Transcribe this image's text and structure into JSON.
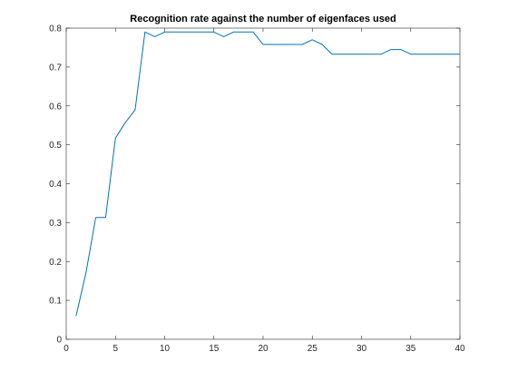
{
  "chart_data": {
    "type": "line",
    "title": "Recognition rate against the number of eigenfaces used",
    "xlabel": "",
    "ylabel": "",
    "xlim": [
      0,
      40
    ],
    "ylim": [
      0,
      0.8
    ],
    "x_ticks": [
      0,
      5,
      10,
      15,
      20,
      25,
      30,
      35,
      40
    ],
    "x_tick_labels": [
      "0",
      "5",
      "10",
      "15",
      "20",
      "25",
      "30",
      "35",
      "40"
    ],
    "y_ticks": [
      0,
      0.1,
      0.2,
      0.3,
      0.4,
      0.5,
      0.6,
      0.7,
      0.8
    ],
    "y_tick_labels": [
      "0",
      "0.1",
      "0.2",
      "0.3",
      "0.4",
      "0.5",
      "0.6",
      "0.7",
      "0.8"
    ],
    "grid": false,
    "legend": "none",
    "line_color": "#0072bd",
    "x": [
      1,
      2,
      3,
      4,
      5,
      6,
      7,
      8,
      9,
      10,
      11,
      12,
      13,
      14,
      15,
      16,
      17,
      18,
      19,
      20,
      21,
      22,
      23,
      24,
      25,
      26,
      27,
      28,
      29,
      30,
      31,
      32,
      33,
      34,
      35,
      36,
      37,
      38,
      39,
      40
    ],
    "y": [
      0.06,
      0.17,
      0.313,
      0.313,
      0.517,
      0.557,
      0.59,
      0.79,
      0.778,
      0.79,
      0.79,
      0.79,
      0.79,
      0.79,
      0.79,
      0.778,
      0.79,
      0.79,
      0.79,
      0.758,
      0.758,
      0.758,
      0.758,
      0.758,
      0.77,
      0.758,
      0.733,
      0.733,
      0.733,
      0.733,
      0.733,
      0.733,
      0.745,
      0.745,
      0.733,
      0.733,
      0.733,
      0.733,
      0.733,
      0.733
    ]
  }
}
